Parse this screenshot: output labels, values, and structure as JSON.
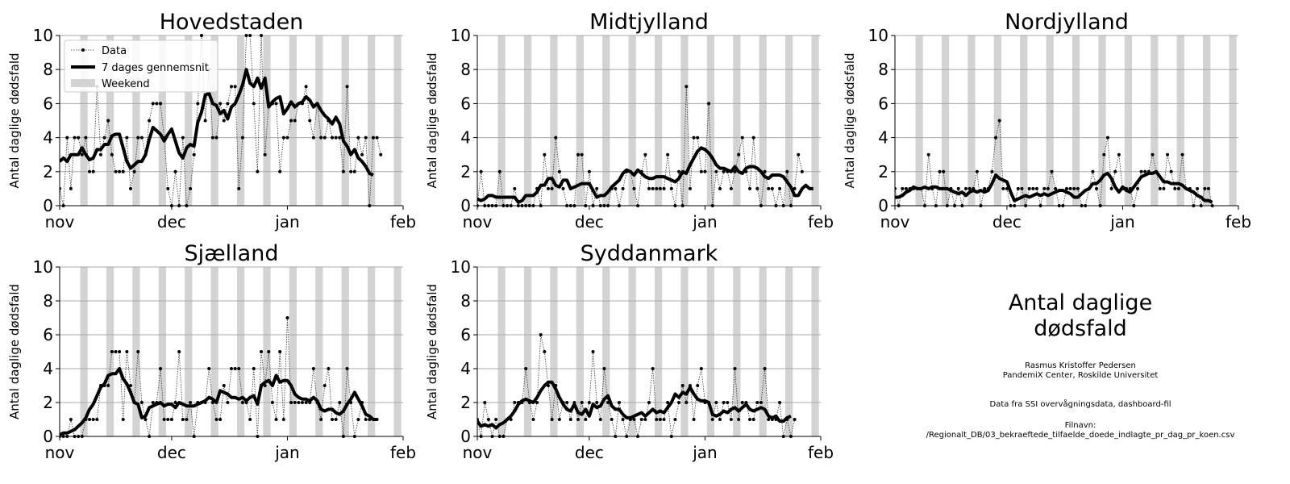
{
  "x_ticks": [
    "nov",
    "dec",
    "jan",
    "feb"
  ],
  "y_ticks": [
    "0",
    "2",
    "4",
    "6",
    "8",
    "10"
  ],
  "legend": {
    "data": "Data",
    "mean": "7 dages gennemsnit",
    "weekend": "Weekend",
    "location": "upper left"
  },
  "info": {
    "title": "Antal daglige dødsfald",
    "author": "Rasmus Kristoffer Pedersen",
    "affiliation": "PandemiX Center, Roskilde Universitet",
    "source": "Data fra SSI overvågningsdata, dashboard-fil",
    "file_label": "Filnavn:",
    "file_path": "/Regionalt_DB/03_bekraeftede_tilfaelde_doede_indlagte_pr_dag_pr_koen.csv"
  },
  "chart_data": [
    {
      "type": "line",
      "title": "Hovedstaden",
      "ylabel": "Antal daglige dødsfald",
      "x_start": "2020-11-01",
      "x_end": "2021-02-01",
      "ylim": [
        0,
        10
      ],
      "grid": "horizontal",
      "weekends_shaded": true,
      "series": [
        {
          "name": "Data",
          "values": [
            1,
            0,
            4,
            1,
            4,
            4,
            3,
            4,
            2,
            2,
            7,
            3,
            4,
            5,
            3,
            2,
            2,
            2,
            4,
            1,
            2,
            4,
            4,
            3,
            5,
            6,
            6,
            6,
            4,
            1,
            0,
            2,
            0,
            4,
            0,
            1,
            3,
            6,
            10,
            5,
            8,
            4,
            4,
            6,
            5,
            6,
            7,
            7,
            1,
            4,
            10,
            10,
            6,
            2,
            10,
            3,
            6,
            6,
            6,
            2,
            4,
            4,
            5,
            5,
            6,
            6,
            7,
            5,
            4,
            6,
            4,
            4,
            5,
            4,
            4,
            4,
            2,
            7,
            2,
            2,
            4,
            3,
            4,
            0,
            4,
            4,
            3
          ]
        },
        {
          "name": "7 dages gennemsnit",
          "values": [
            2.6,
            2.8,
            2.6,
            3.0,
            3.0,
            3.0,
            3.4,
            3.0,
            2.7,
            2.8,
            3.3,
            3.3,
            3.6,
            3.6,
            4.1,
            4.2,
            4.2,
            3.4,
            2.6,
            2.2,
            2.4,
            2.6,
            2.6,
            3.0,
            3.9,
            4.6,
            4.4,
            4.2,
            3.8,
            4.2,
            4.5,
            3.8,
            3.1,
            2.8,
            3.4,
            3.6,
            3.5,
            4.9,
            5.5,
            6.5,
            6.6,
            6.0,
            5.9,
            5.4,
            5.6,
            5.1,
            5.8,
            6.0,
            6.5,
            7.1,
            8.0,
            7.2,
            7.0,
            7.5,
            6.9,
            7.5,
            5.8,
            6.1,
            6.3,
            6.4,
            5.4,
            5.7,
            6.1,
            5.8,
            6.0,
            6.1,
            6.4,
            6.2,
            5.8,
            6.0,
            5.6,
            5.3,
            5.1,
            4.8,
            5.2,
            4.8,
            3.8,
            3.5,
            3.0,
            3.3,
            2.8,
            2.6,
            2.3,
            1.9,
            1.8
          ]
        }
      ]
    },
    {
      "type": "line",
      "title": "Midtjylland",
      "ylabel": "Antal daglige dødsfald",
      "x_start": "2020-11-01",
      "x_end": "2021-02-01",
      "ylim": [
        0,
        10
      ],
      "grid": "horizontal",
      "weekends_shaded": true,
      "series": [
        {
          "name": "Data",
          "values": [
            0,
            2,
            0,
            0,
            0,
            0,
            2,
            0,
            0,
            0,
            1,
            0,
            0,
            0,
            0,
            0,
            1,
            0,
            3,
            1,
            1,
            4,
            2,
            1,
            0,
            0,
            0,
            3,
            3,
            0,
            2,
            0,
            1,
            0,
            0,
            0,
            1,
            1,
            0,
            1,
            2,
            2,
            1,
            0,
            2,
            3,
            1,
            1,
            1,
            1,
            1,
            3,
            1,
            0,
            2,
            0,
            7,
            1,
            4,
            4,
            2,
            2,
            6,
            0,
            2,
            1,
            2,
            2,
            1,
            2,
            3,
            4,
            2,
            1,
            4,
            1,
            0,
            2,
            1,
            1,
            0,
            1,
            0,
            2,
            0,
            1,
            3,
            2
          ]
        },
        {
          "name": "7 dages gennemsnit",
          "values": [
            0.4,
            0.3,
            0.4,
            0.6,
            0.6,
            0.5,
            0.5,
            0.5,
            0.5,
            0.5,
            0.5,
            0.2,
            0.3,
            0.6,
            0.6,
            0.6,
            0.8,
            1.2,
            1.2,
            1.6,
            1.6,
            1.2,
            1.1,
            1.5,
            1.5,
            1.0,
            1.1,
            1.2,
            1.3,
            1.3,
            1.3,
            0.9,
            0.5,
            0.6,
            0.6,
            0.8,
            1.1,
            1.3,
            1.5,
            1.9,
            2.1,
            2.0,
            1.8,
            2.1,
            1.9,
            1.7,
            1.6,
            1.6,
            1.7,
            1.7,
            1.7,
            1.6,
            1.5,
            1.4,
            1.6,
            2.0,
            1.9,
            2.4,
            2.8,
            3.2,
            3.4,
            3.3,
            3.1,
            2.8,
            2.4,
            2.2,
            2.2,
            2.1,
            2.0,
            2.3,
            2.0,
            1.9,
            2.2,
            2.3,
            2.3,
            2.2,
            2.0,
            1.7,
            1.6,
            1.8,
            1.8,
            1.8,
            1.7,
            1.4,
            1.1,
            0.6,
            0.6,
            1.0,
            1.2,
            1.0,
            1.0
          ]
        }
      ]
    },
    {
      "type": "line",
      "title": "Nordjylland",
      "ylabel": "Antal daglige dødsfald",
      "x_start": "2020-11-01",
      "x_end": "2021-02-01",
      "ylim": [
        0,
        10
      ],
      "grid": "horizontal",
      "weekends_shaded": true,
      "series": [
        {
          "name": "Data",
          "values": [
            1,
            0,
            1,
            1,
            1,
            1,
            1,
            1,
            0,
            3,
            1,
            0,
            2,
            2,
            0,
            1,
            0,
            1,
            0,
            1,
            1,
            1,
            2,
            0,
            1,
            1,
            2,
            4,
            5,
            1,
            1,
            0,
            0,
            1,
            1,
            0,
            1,
            1,
            1,
            0,
            1,
            1,
            2,
            1,
            0,
            0,
            1,
            1,
            1,
            1,
            0,
            0,
            1,
            2,
            1,
            0,
            3,
            4,
            1,
            2,
            3,
            1,
            1,
            1,
            0,
            1,
            2,
            2,
            2,
            3,
            2,
            1,
            1,
            3,
            2,
            1,
            1,
            3,
            1,
            1,
            0,
            1,
            0,
            1,
            1,
            0
          ]
        },
        {
          "name": "7 dages gennemsnit",
          "values": [
            0.5,
            0.5,
            0.6,
            0.8,
            0.9,
            1.1,
            1.0,
            1.0,
            1.1,
            1.0,
            1.1,
            1.1,
            1.0,
            1.0,
            1.0,
            0.9,
            0.8,
            0.7,
            0.8,
            0.6,
            0.8,
            0.9,
            0.8,
            0.9,
            0.8,
            0.9,
            1.3,
            1.8,
            1.6,
            1.5,
            1.4,
            0.8,
            0.3,
            0.4,
            0.5,
            0.6,
            0.5,
            0.6,
            0.7,
            0.6,
            0.7,
            0.6,
            0.7,
            0.8,
            0.9,
            0.9,
            0.8,
            0.7,
            0.5,
            0.5,
            0.7,
            0.9,
            1.0,
            1.3,
            1.3,
            1.5,
            1.8,
            1.9,
            1.6,
            1.1,
            0.8,
            1.1,
            0.9,
            0.8,
            1.1,
            1.4,
            1.7,
            1.8,
            1.9,
            1.9,
            2.0,
            1.7,
            1.4,
            1.4,
            1.3,
            1.3,
            1.3,
            1.2,
            1.0,
            0.9,
            0.8,
            0.6,
            0.5,
            0.3,
            0.3,
            0.2
          ]
        }
      ]
    },
    {
      "type": "line",
      "title": "Sjælland",
      "ylabel": "Antal daglige dødsfald",
      "x_start": "2020-11-01",
      "x_end": "2021-02-01",
      "ylim": [
        0,
        10
      ],
      "grid": "horizontal",
      "weekends_shaded": true,
      "series": [
        {
          "name": "Data",
          "values": [
            0,
            0,
            0,
            1,
            0,
            0,
            0,
            1,
            1,
            1,
            1,
            3,
            3,
            3,
            5,
            5,
            5,
            1,
            5,
            3,
            2,
            5,
            2,
            1,
            0,
            2,
            2,
            4,
            1,
            1,
            1,
            2,
            5,
            1,
            1,
            2,
            0,
            2,
            2,
            2,
            4,
            2,
            1,
            1,
            3,
            2,
            4,
            4,
            4,
            2,
            2,
            1,
            4,
            0,
            5,
            3,
            5,
            2,
            1,
            5,
            1,
            7,
            2,
            2,
            2,
            2,
            2,
            2,
            4,
            2,
            1,
            3,
            4,
            1,
            1,
            2,
            0,
            4,
            2,
            0,
            1,
            2,
            1,
            1,
            1,
            1
          ]
        },
        {
          "name": "7 dages gennemsnit",
          "values": [
            0.1,
            0.2,
            0.2,
            0.3,
            0.4,
            0.6,
            0.8,
            1.1,
            1.6,
            1.9,
            2.4,
            2.9,
            3.1,
            3.6,
            3.7,
            3.7,
            4.0,
            3.4,
            3.1,
            2.6,
            2.0,
            1.9,
            1.1,
            1.2,
            1.7,
            1.8,
            1.9,
            2.0,
            1.8,
            1.9,
            1.9,
            1.7,
            2.0,
            1.9,
            1.8,
            1.8,
            1.8,
            1.9,
            2.0,
            2.1,
            2.3,
            2.2,
            2.0,
            2.7,
            2.6,
            2.5,
            2.3,
            2.3,
            2.2,
            2.3,
            2.1,
            2.3,
            2.4,
            1.9,
            3.0,
            3.2,
            3.3,
            3.0,
            3.6,
            3.2,
            3.3,
            3.3,
            3.0,
            2.5,
            2.3,
            2.2,
            2.2,
            2.1,
            2.3,
            2.1,
            1.6,
            1.5,
            1.6,
            1.6,
            1.4,
            1.3,
            1.5,
            1.9,
            2.2,
            2.6,
            2.2,
            1.8,
            1.3,
            1.2,
            1.0,
            1.0
          ]
        }
      ]
    },
    {
      "type": "line",
      "title": "Syddanmark",
      "ylabel": "Antal daglige dødsfald",
      "x_start": "2020-11-01",
      "x_end": "2021-02-01",
      "ylim": [
        0,
        10
      ],
      "grid": "horizontal",
      "weekends_shaded": true,
      "series": [
        {
          "name": "Data",
          "values": [
            1,
            0,
            2,
            1,
            0,
            1,
            0,
            0,
            1,
            1,
            2,
            2,
            2,
            4,
            2,
            1,
            2,
            6,
            5,
            3,
            1,
            3,
            1,
            2,
            2,
            1,
            2,
            1,
            2,
            1,
            2,
            5,
            2,
            1,
            4,
            2,
            1,
            0,
            2,
            1,
            0,
            1,
            1,
            0,
            1,
            1,
            2,
            4,
            1,
            1,
            1,
            2,
            0,
            1,
            2,
            3,
            2,
            3,
            1,
            3,
            4,
            2,
            2,
            1,
            2,
            1,
            2,
            2,
            1,
            4,
            1,
            2,
            2,
            1,
            1,
            2,
            2,
            4,
            1,
            1,
            1,
            2,
            0,
            1,
            0,
            1
          ]
        },
        {
          "name": "7 dages gennemsnit",
          "values": [
            0.9,
            0.6,
            0.7,
            0.6,
            0.7,
            0.5,
            0.7,
            0.8,
            1.0,
            1.2,
            1.5,
            1.9,
            2.1,
            2.2,
            2.1,
            2.0,
            2.3,
            2.7,
            3.0,
            3.2,
            3.2,
            2.8,
            2.3,
            1.9,
            1.6,
            1.5,
            1.9,
            1.4,
            1.3,
            1.6,
            1.2,
            1.9,
            1.7,
            1.8,
            2.2,
            2.4,
            1.8,
            1.6,
            1.6,
            1.3,
            1.1,
            1.1,
            1.2,
            1.3,
            1.4,
            1.2,
            1.4,
            1.6,
            1.4,
            1.5,
            1.4,
            1.7,
            2.0,
            2.5,
            2.3,
            2.6,
            2.5,
            2.9,
            2.5,
            2.2,
            2.1,
            2.1,
            2.0,
            1.3,
            1.2,
            1.3,
            1.5,
            1.4,
            1.6,
            1.7,
            1.5,
            1.7,
            1.9,
            1.6,
            1.5,
            1.6,
            1.7,
            1.6,
            1.2,
            1.1,
            1.2,
            0.9,
            0.9,
            1.1,
            1.2
          ]
        }
      ]
    }
  ]
}
